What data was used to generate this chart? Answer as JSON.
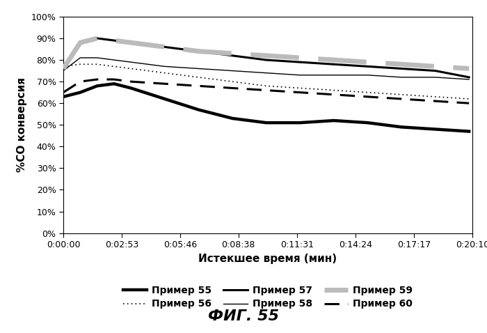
{
  "title": "ФИГ. 55",
  "xlabel": "Истекшее время (мин)",
  "ylabel": "%СО конверсия",
  "ylim": [
    0,
    100
  ],
  "yticks": [
    0,
    10,
    20,
    30,
    40,
    50,
    60,
    70,
    80,
    90,
    100
  ],
  "xtick_labels": [
    "0:00:00",
    "0:02:53",
    "0:05:46",
    "0:08:38",
    "0:11:31",
    "0:14:24",
    "0:17:17",
    "0:20:10"
  ],
  "xtick_positions": [
    0,
    173,
    346,
    518,
    691,
    864,
    1037,
    1210
  ],
  "series": {
    "55": {
      "label": "Пример 55",
      "x": [
        0,
        50,
        100,
        150,
        200,
        300,
        400,
        500,
        600,
        700,
        800,
        900,
        1000,
        1100,
        1200
      ],
      "y": [
        63,
        65,
        68,
        69,
        67,
        62,
        57,
        53,
        51,
        51,
        52,
        51,
        49,
        48,
        47
      ]
    },
    "56": {
      "label": "Пример 56",
      "x": [
        0,
        50,
        100,
        150,
        200,
        300,
        400,
        500,
        600,
        700,
        800,
        900,
        1000,
        1100,
        1200
      ],
      "y": [
        77,
        78,
        78,
        77,
        76,
        74,
        72,
        70,
        68,
        67,
        66,
        65,
        64,
        63,
        62
      ]
    },
    "57": {
      "label": "Пример 57",
      "x": [
        0,
        50,
        100,
        150,
        200,
        300,
        400,
        500,
        600,
        700,
        800,
        900,
        1000,
        1100,
        1200
      ],
      "y": [
        76,
        88,
        90,
        89,
        88,
        86,
        84,
        82,
        80,
        79,
        78,
        77,
        76,
        75,
        72
      ]
    },
    "58": {
      "label": "Пример 58",
      "x": [
        0,
        50,
        100,
        150,
        200,
        300,
        400,
        500,
        600,
        700,
        800,
        900,
        1000,
        1100,
        1200
      ],
      "y": [
        75,
        81,
        81,
        80,
        79,
        77,
        76,
        75,
        74,
        73,
        73,
        73,
        72,
        72,
        71
      ]
    },
    "59": {
      "label": "Пример 59",
      "x": [
        0,
        50,
        100,
        150,
        200,
        300,
        400,
        500,
        600,
        700,
        800,
        900,
        1000,
        1100,
        1200
      ],
      "y": [
        76,
        88,
        90,
        89,
        88,
        86,
        84,
        83,
        82,
        81,
        80,
        79,
        78,
        77,
        76
      ]
    },
    "60": {
      "label": "Пример 60",
      "x": [
        0,
        50,
        100,
        150,
        200,
        300,
        400,
        500,
        600,
        700,
        800,
        900,
        1000,
        1100,
        1200
      ],
      "y": [
        65,
        70,
        71,
        71,
        70,
        69,
        68,
        67,
        66,
        65,
        64,
        63,
        62,
        61,
        60
      ]
    }
  },
  "legend_order": [
    "55",
    "56",
    "57",
    "58",
    "59",
    "60"
  ],
  "background_color": "#ffffff"
}
